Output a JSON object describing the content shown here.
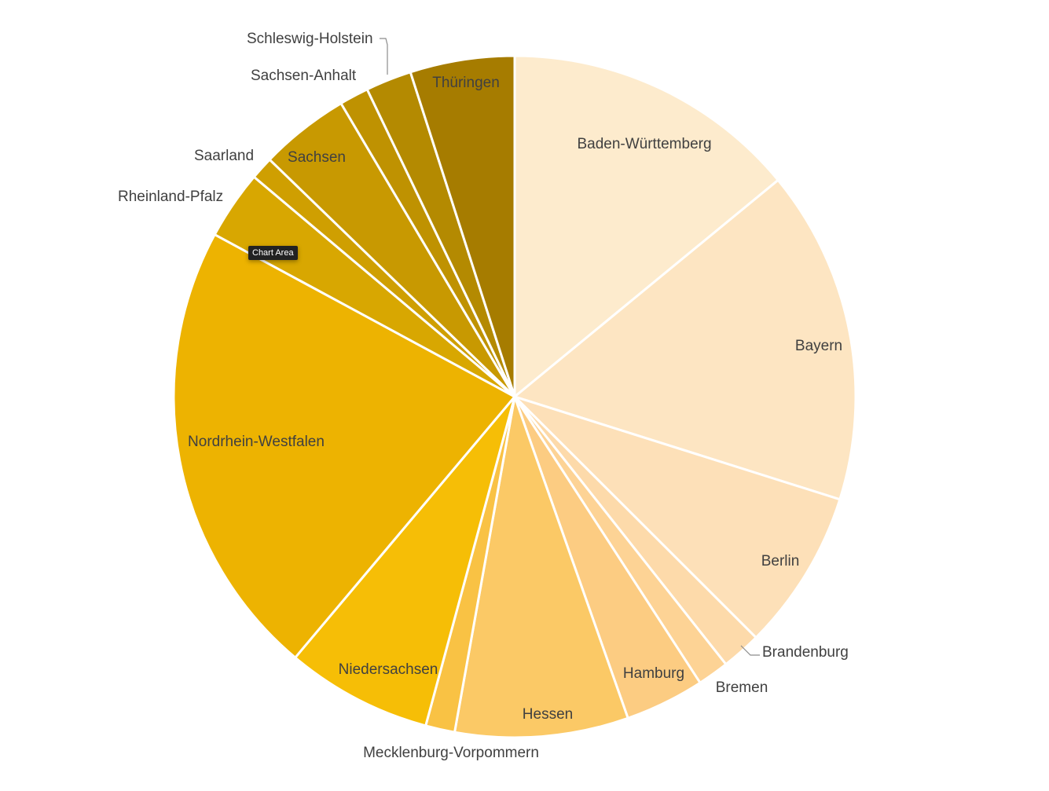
{
  "tooltip": {
    "label": "Chart Area"
  },
  "chart_data": {
    "type": "pie",
    "title": "",
    "legend": "none",
    "categories": [
      "Baden-Württemberg",
      "Bayern",
      "Berlin",
      "Brandenburg",
      "Bremen",
      "Hamburg",
      "Hessen",
      "Mecklenburg-Vorpommern",
      "Niedersachsen",
      "Nordrhein-Westfalen",
      "Rheinland-Pfalz",
      "Saarland",
      "Sachsen",
      "Sachsen-Anhalt",
      "Schleswig-Holstein",
      "Thüringen"
    ],
    "values": [
      14.2,
      16.0,
      7.7,
      1.9,
      1.5,
      3.8,
      8.3,
      1.4,
      7.0,
      22.0,
      3.3,
      1.1,
      4.3,
      1.4,
      2.2,
      5.0
    ],
    "colors": [
      "#FDEBCD",
      "#FDE5C2",
      "#FDE0B8",
      "#FDDAAA",
      "#FDD395",
      "#FCCC82",
      "#FBC966",
      "#F9C244",
      "#F6BE06",
      "#EDB301",
      "#D8A701",
      "#CF9F01",
      "#C89901",
      "#BF9201",
      "#B48A01",
      "#A67C00"
    ]
  }
}
